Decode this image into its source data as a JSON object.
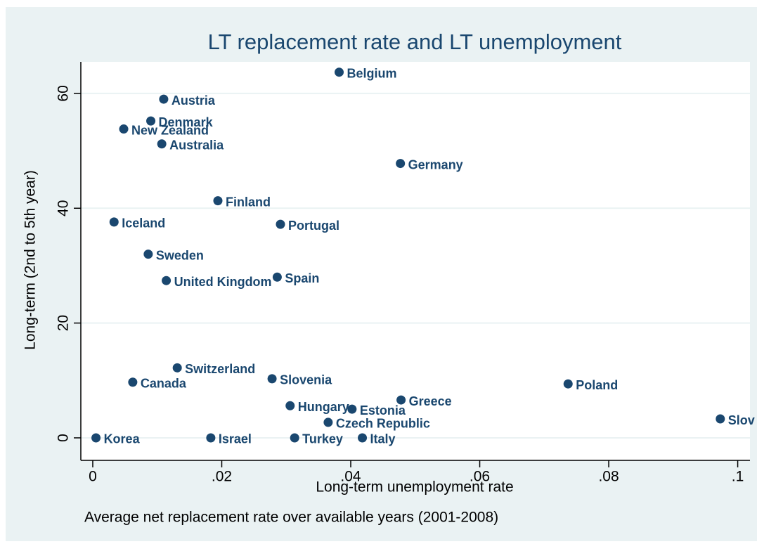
{
  "chart_data": {
    "type": "scatter",
    "title": "LT replacement rate and LT unemployment",
    "x_label": "Long-term unemployment rate",
    "y_label": "Long-term  (2nd to 5th year)",
    "note": "Average net replacement rate over available years (2001-2008)",
    "color": "#1a476f",
    "grid": true,
    "labels": [
      "Belgium",
      "Austria",
      "Denmark",
      "New Zealand",
      "Australia",
      "Germany",
      "Finland",
      "Iceland",
      "Portugal",
      "Sweden",
      "United Kingdom",
      "Spain",
      "Switzerland",
      "Canada",
      "Slovenia",
      "Poland",
      "Greece",
      "Hungary",
      "Estonia",
      "Czech Republic",
      "Slov",
      "Korea",
      "Israel",
      "Turkey",
      "Italy"
    ],
    "x": [
      0.0382,
      0.011,
      0.009,
      0.0048,
      0.0107,
      0.0477,
      0.0194,
      0.0033,
      0.0291,
      0.0086,
      0.0114,
      0.0286,
      0.0131,
      0.0062,
      0.0278,
      0.0737,
      0.0478,
      0.0306,
      0.0402,
      0.0365,
      0.0973,
      0.0005,
      0.0183,
      0.0313,
      0.0418
    ],
    "values": [
      63.7,
      59.0,
      55.2,
      53.8,
      51.2,
      47.8,
      41.3,
      37.6,
      37.2,
      32.0,
      27.4,
      28.0,
      12.2,
      9.7,
      10.3,
      9.4,
      6.6,
      5.6,
      5.0,
      2.7,
      3.3,
      0,
      0,
      0,
      0
    ],
    "xlim": [
      -0.00185,
      0.1019
    ],
    "ylim": [
      -3.92,
      65.5
    ],
    "xticks": [
      0,
      {
        "value": 0.02,
        "label": ".02"
      },
      {
        "value": 0.04,
        "label": ".04"
      },
      {
        "value": 0.06,
        "label": ".06"
      },
      {
        "value": 0.08,
        "label": ".08"
      },
      {
        "value": 0.1,
        "label": ".1"
      }
    ],
    "yticks": [
      0,
      20,
      40,
      60
    ]
  }
}
